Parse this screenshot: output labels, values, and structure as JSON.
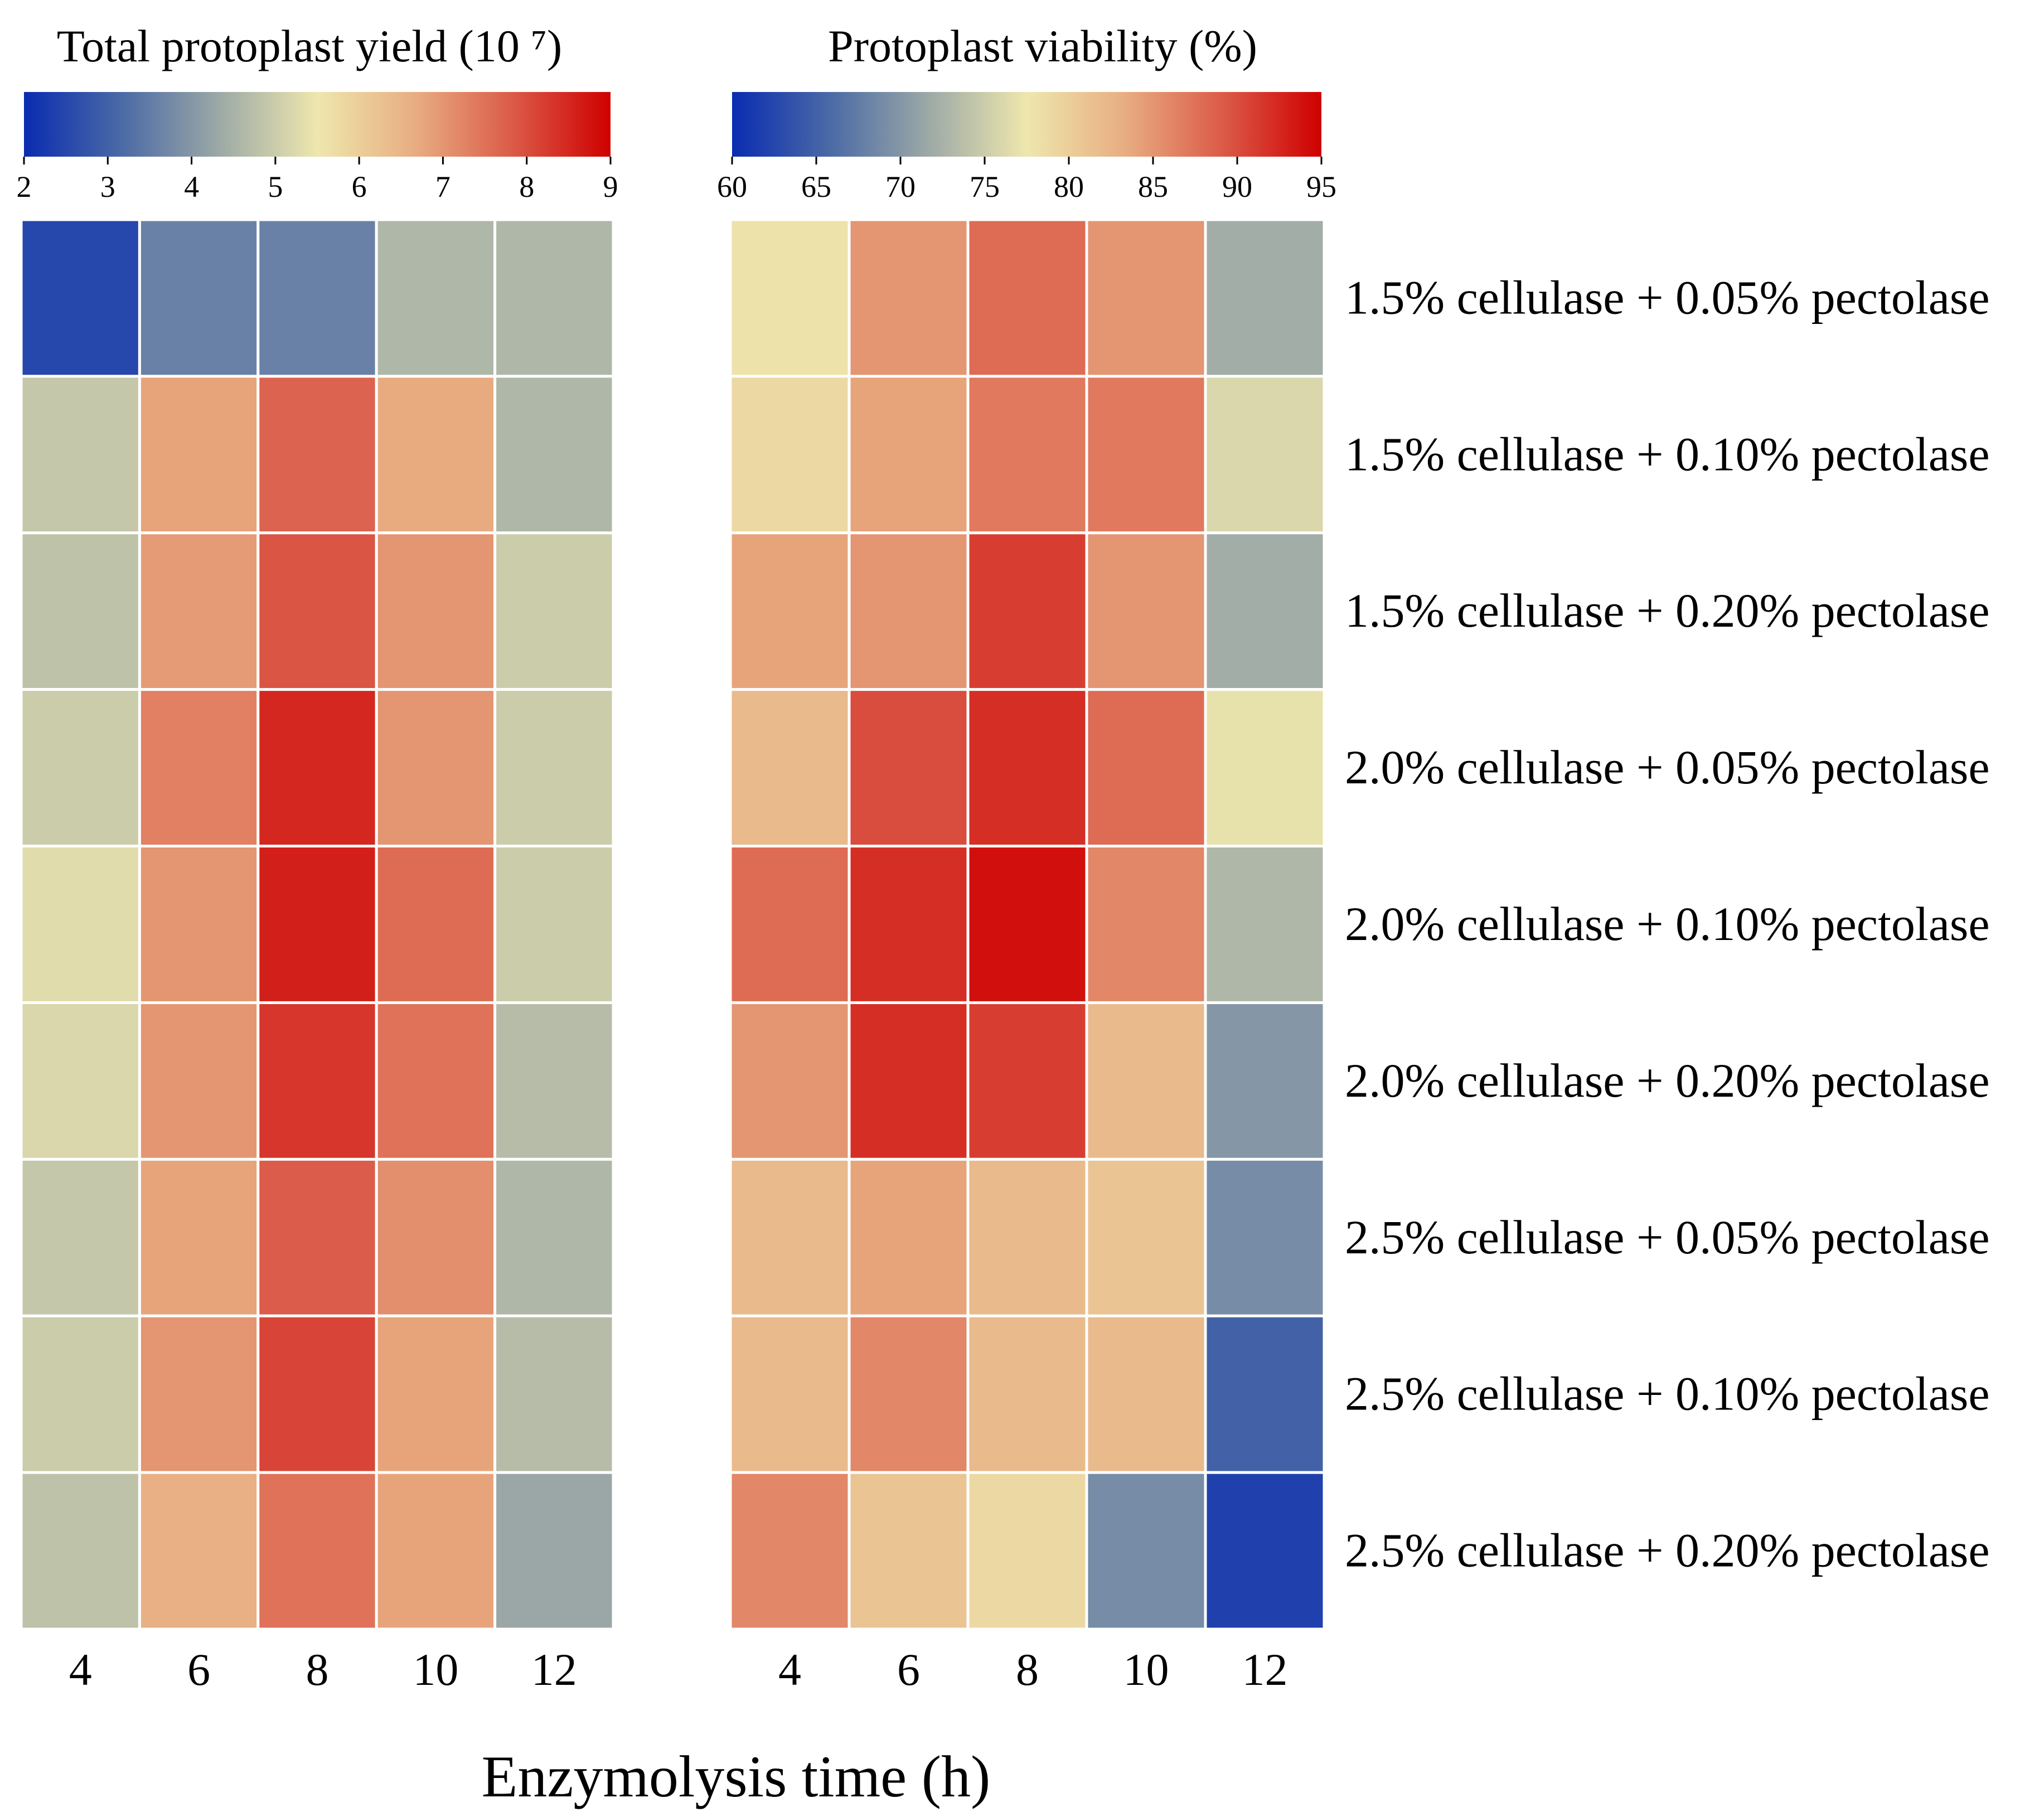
{
  "chart_data": [
    {
      "type": "heatmap",
      "title": "Total protoplast yield (10 ⁷)",
      "colorbar": {
        "min": 2,
        "max": 9,
        "ticks": [
          2,
          3,
          4,
          5,
          6,
          7,
          8,
          9
        ],
        "position": "top"
      },
      "x": [
        4,
        6,
        8,
        10,
        12
      ],
      "xlabel": "Enzymolysis time (h)",
      "rows": [
        "1.5% cellulase + 0.05% pectolase",
        "1.5% cellulase + 0.10% pectolase",
        "1.5% cellulase + 0.20% pectolase",
        "2.0% cellulase + 0.05% pectolase",
        "2.0% cellulase + 0.10% pectolase",
        "2.0% cellulase + 0.20% pectolase",
        "2.5% cellulase + 0.05% pectolase",
        "2.5% cellulase + 0.10% pectolase",
        "2.5% cellulase + 0.20% pectolase"
      ],
      "values": [
        [
          2.5,
          3.6,
          3.6,
          4.6,
          4.6
        ],
        [
          4.9,
          6.8,
          7.7,
          6.7,
          4.6
        ],
        [
          4.8,
          6.9,
          7.9,
          7.0,
          5.0
        ],
        [
          5.0,
          7.3,
          8.5,
          7.0,
          5.0
        ],
        [
          5.3,
          7.0,
          8.6,
          7.6,
          5.0
        ],
        [
          5.2,
          7.0,
          8.3,
          7.5,
          4.7
        ],
        [
          4.9,
          6.8,
          7.8,
          7.1,
          4.6
        ],
        [
          5.0,
          7.0,
          8.1,
          6.8,
          4.7
        ],
        [
          4.8,
          6.6,
          7.5,
          6.8,
          4.3
        ]
      ]
    },
    {
      "type": "heatmap",
      "title": "Protoplast viability (%)",
      "colorbar": {
        "min": 60,
        "max": 95,
        "ticks": [
          60,
          65,
          70,
          75,
          80,
          85,
          90,
          95
        ],
        "position": "top"
      },
      "x": [
        4,
        6,
        8,
        10,
        12
      ],
      "xlabel": "Enzymolysis time (h)",
      "rows": [
        "1.5% cellulase + 0.05% pectolase",
        "1.5% cellulase + 0.10% pectolase",
        "1.5% cellulase + 0.20% pectolase",
        "2.0% cellulase + 0.05% pectolase",
        "2.0% cellulase + 0.10% pectolase",
        "2.0% cellulase + 0.20% pectolase",
        "2.5% cellulase + 0.05% pectolase",
        "2.5% cellulase + 0.10% pectolase",
        "2.5% cellulase + 0.20% pectolase"
      ],
      "values": [
        [
          78,
          85,
          88,
          85,
          72
        ],
        [
          79,
          84,
          87,
          87,
          76
        ],
        [
          84,
          85,
          91,
          85,
          72
        ],
        [
          82,
          90,
          92,
          88,
          77
        ],
        [
          88,
          92,
          94,
          86,
          73
        ],
        [
          85,
          92,
          91,
          82,
          70
        ],
        [
          82,
          84,
          82,
          81,
          69
        ],
        [
          82,
          86,
          82,
          82,
          65
        ],
        [
          86,
          81,
          79,
          69,
          62
        ]
      ]
    }
  ],
  "colors": {
    "scale": [
      "#0a2cb0",
      "#4b6aa6",
      "#9ca9a6",
      "#eee7ad",
      "#e8ad82",
      "#db5a48",
      "#cf0000"
    ],
    "grid": "#ffffff"
  }
}
